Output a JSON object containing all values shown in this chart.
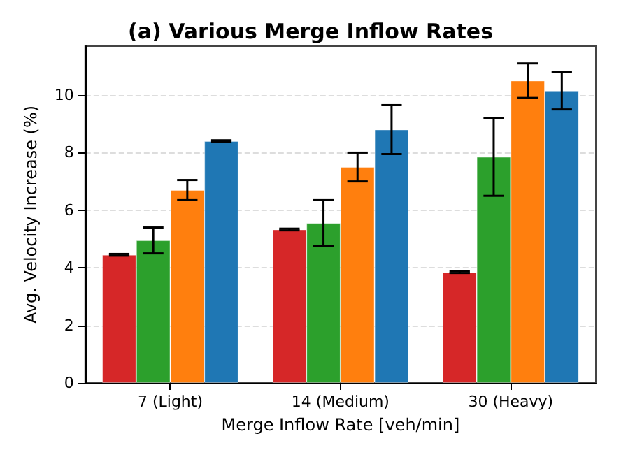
{
  "chart_data": {
    "type": "bar",
    "title": "(a) Various Merge Inflow Rates",
    "xlabel": "Merge Inflow Rate [veh/min]",
    "ylabel": "Avg. Velocity Increase (%)",
    "categories": [
      "7 (Light)",
      "14 (Medium)",
      "30 (Heavy)"
    ],
    "series": [
      {
        "color": "#d62728",
        "values": [
          4.45,
          5.33,
          3.85
        ],
        "errors": [
          0.03,
          0.03,
          0.03
        ]
      },
      {
        "color": "#2ca02c",
        "values": [
          4.95,
          5.55,
          7.85
        ],
        "errors": [
          0.45,
          0.8,
          1.35
        ]
      },
      {
        "color": "#ff7f0e",
        "values": [
          6.7,
          7.5,
          10.5
        ],
        "errors": [
          0.35,
          0.5,
          0.6
        ]
      },
      {
        "color": "#1f77b4",
        "values": [
          8.4,
          8.8,
          10.15
        ],
        "errors": [
          0.03,
          0.85,
          0.65
        ]
      }
    ],
    "ylim": [
      0,
      11.7
    ],
    "yticks": [
      0,
      2,
      4,
      6,
      8,
      10
    ],
    "grid": "y"
  }
}
